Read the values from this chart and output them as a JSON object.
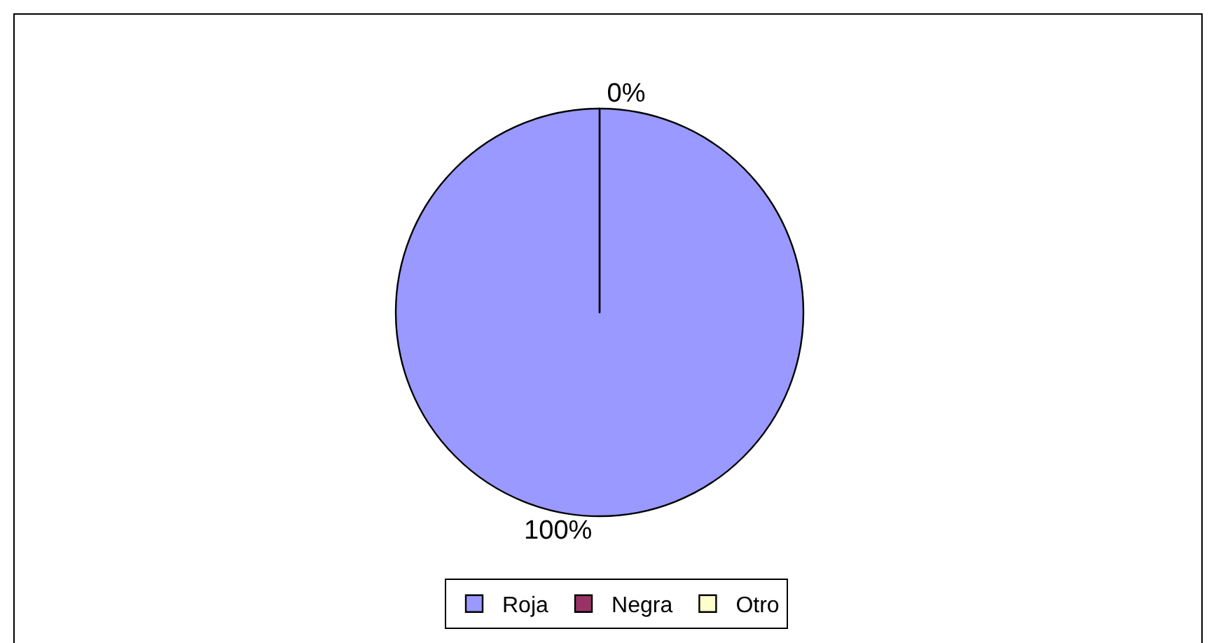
{
  "chart_data": {
    "type": "pie",
    "categories": [
      "Roja",
      "Negra",
      "Otro"
    ],
    "values": [
      100,
      0,
      0
    ],
    "colors": [
      "#9999ff",
      "#993366",
      "#ffffcc"
    ],
    "value_labels": [
      "100%",
      "0%",
      null
    ],
    "legend": "bottom"
  }
}
